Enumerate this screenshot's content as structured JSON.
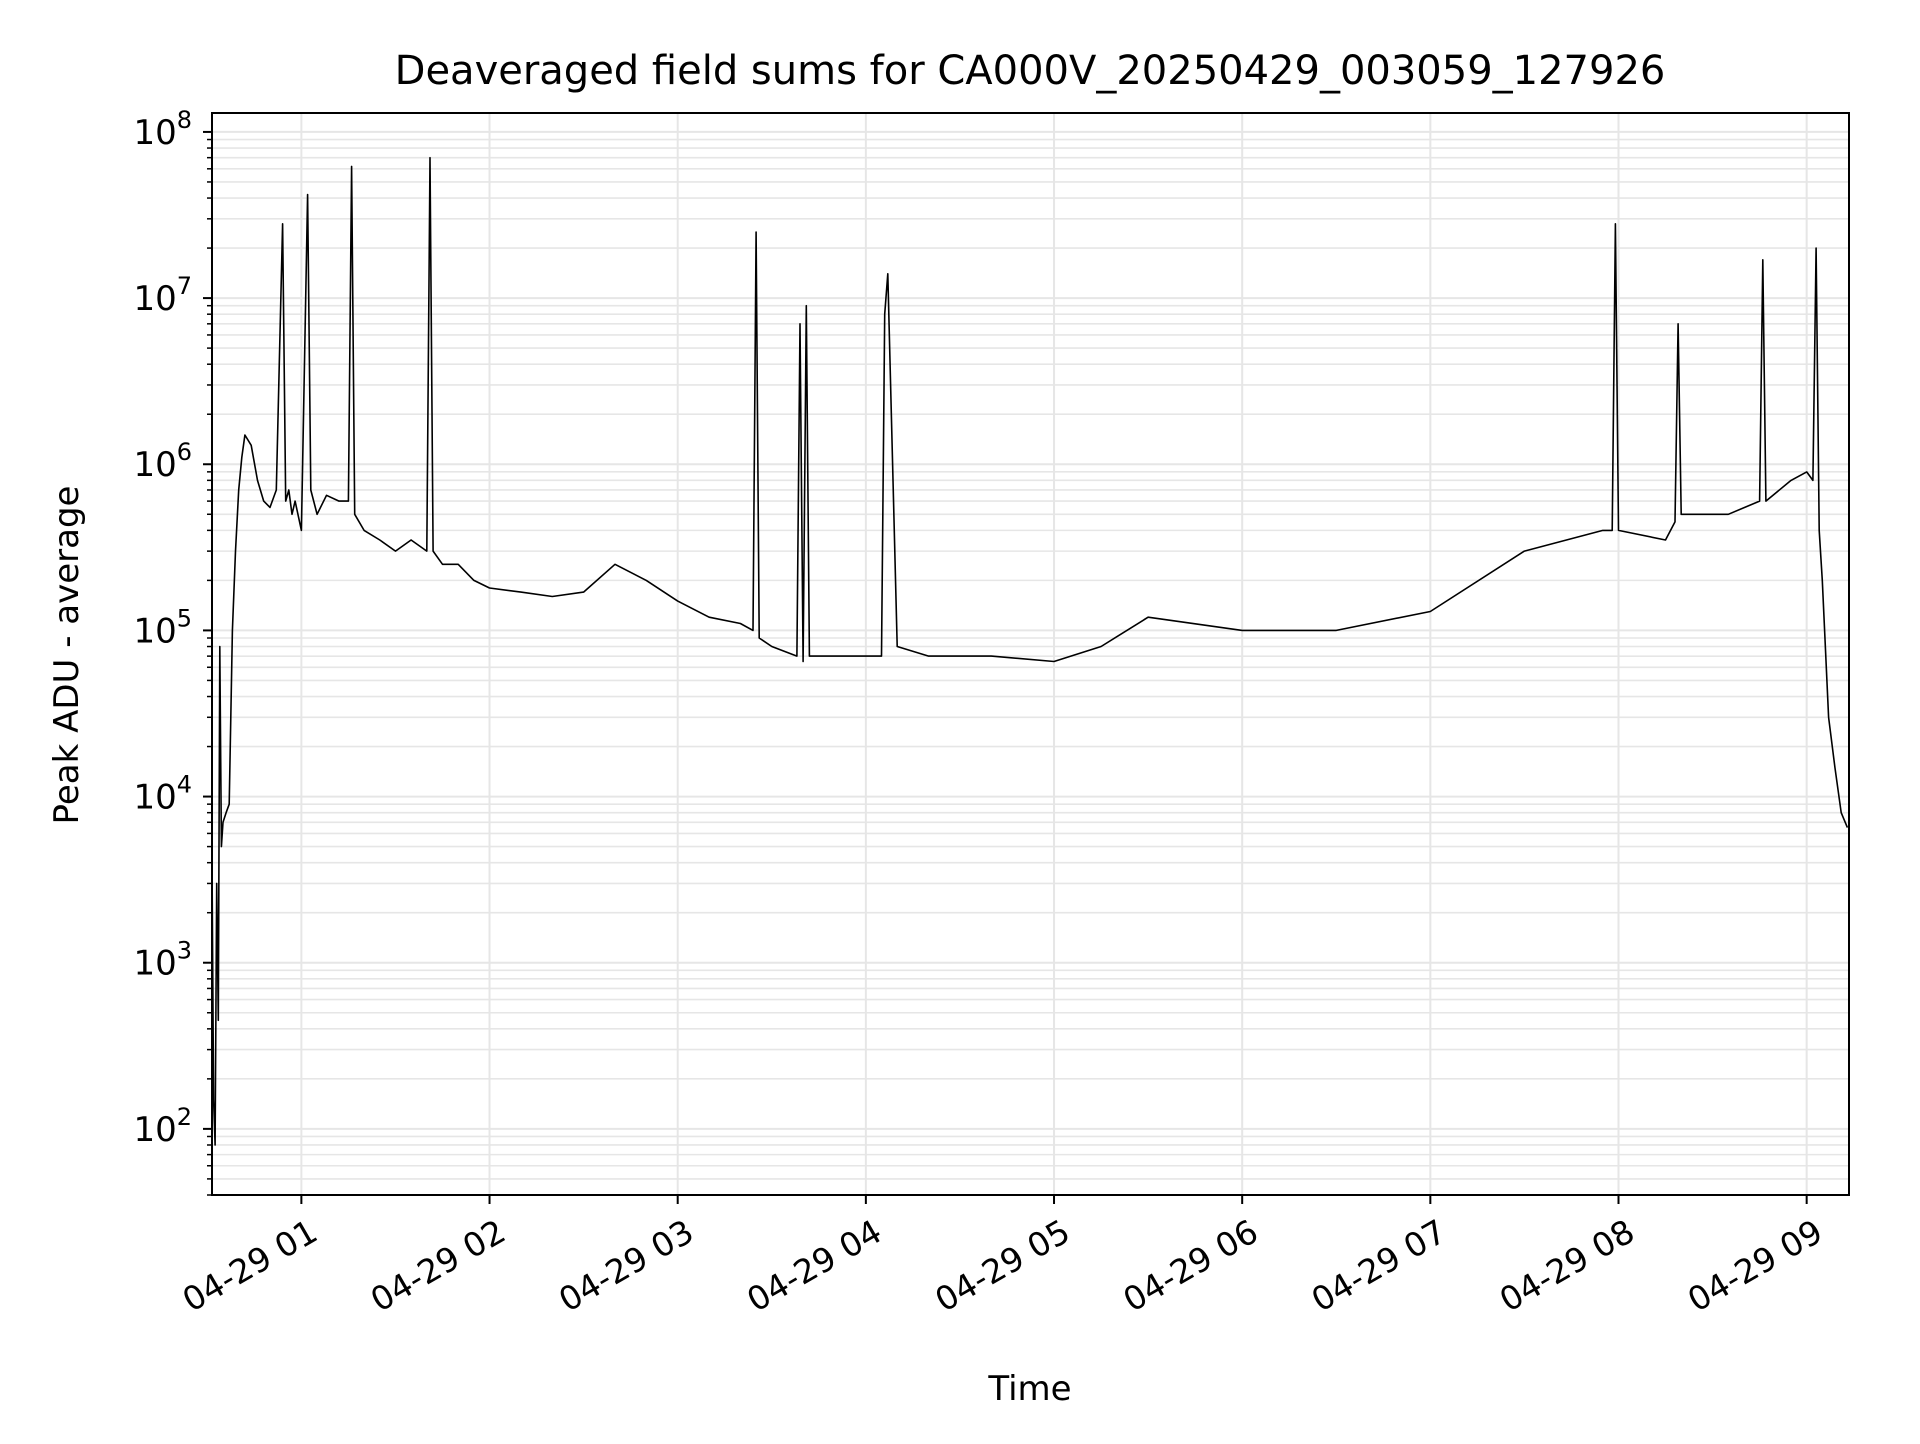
{
  "chart_data": {
    "type": "line",
    "title": "Deaveraged field sums for CA000V_20250429_003059_127926",
    "xlabel": "Time",
    "ylabel": "Peak ADU - average",
    "y_scale": "log",
    "ylim": [
      40,
      130000000
    ],
    "xlim": [
      "2025-04-29 00:31:30",
      "2025-04-29 09:13:30"
    ],
    "grid": true,
    "x_ticks": [
      {
        "value": "2025-04-29 01:00",
        "label": "04-29 01"
      },
      {
        "value": "2025-04-29 02:00",
        "label": "04-29 02"
      },
      {
        "value": "2025-04-29 03:00",
        "label": "04-29 03"
      },
      {
        "value": "2025-04-29 04:00",
        "label": "04-29 04"
      },
      {
        "value": "2025-04-29 05:00",
        "label": "04-29 05"
      },
      {
        "value": "2025-04-29 06:00",
        "label": "04-29 06"
      },
      {
        "value": "2025-04-29 07:00",
        "label": "04-29 07"
      },
      {
        "value": "2025-04-29 08:00",
        "label": "04-29 08"
      },
      {
        "value": "2025-04-29 09:00",
        "label": "04-29 09"
      }
    ],
    "y_ticks": [
      {
        "value": 100,
        "base": "10",
        "exp": "2"
      },
      {
        "value": 1000,
        "base": "10",
        "exp": "3"
      },
      {
        "value": 10000,
        "base": "10",
        "exp": "4"
      },
      {
        "value": 100000,
        "base": "10",
        "exp": "5"
      },
      {
        "value": 1000000,
        "base": "10",
        "exp": "6"
      },
      {
        "value": 10000000,
        "base": "10",
        "exp": "7"
      },
      {
        "value": 100000000,
        "base": "10",
        "exp": "8"
      }
    ],
    "series": [
      {
        "color": "#000000",
        "x": [
          "2025-04-29 00:31:30",
          "2025-04-29 00:32:00",
          "2025-04-29 00:32:30",
          "2025-04-29 00:33:00",
          "2025-04-29 00:33:30",
          "2025-04-29 00:34:00",
          "2025-04-29 00:34:30",
          "2025-04-29 00:35:00",
          "2025-04-29 00:36:00",
          "2025-04-29 00:37:00",
          "2025-04-29 00:38:00",
          "2025-04-29 00:39:00",
          "2025-04-29 00:40:00",
          "2025-04-29 00:41:00",
          "2025-04-29 00:42:00",
          "2025-04-29 00:44:00",
          "2025-04-29 00:46:00",
          "2025-04-29 00:48:00",
          "2025-04-29 00:50:00",
          "2025-04-29 00:52:00",
          "2025-04-29 00:54:00",
          "2025-04-29 00:55:00",
          "2025-04-29 00:56:00",
          "2025-04-29 00:57:00",
          "2025-04-29 00:58:00",
          "2025-04-29 01:00:00",
          "2025-04-29 01:02:00",
          "2025-04-29 01:03:00",
          "2025-04-29 01:05:00",
          "2025-04-29 01:08:00",
          "2025-04-29 01:12:00",
          "2025-04-29 01:15:00",
          "2025-04-29 01:16:00",
          "2025-04-29 01:17:00",
          "2025-04-29 01:20:00",
          "2025-04-29 01:25:00",
          "2025-04-29 01:30:00",
          "2025-04-29 01:35:00",
          "2025-04-29 01:40:00",
          "2025-04-29 01:41:00",
          "2025-04-29 01:42:00",
          "2025-04-29 01:45:00",
          "2025-04-29 01:50:00",
          "2025-04-29 01:55:00",
          "2025-04-29 02:00:00",
          "2025-04-29 02:10:00",
          "2025-04-29 02:20:00",
          "2025-04-29 02:30:00",
          "2025-04-29 02:40:00",
          "2025-04-29 02:50:00",
          "2025-04-29 03:00:00",
          "2025-04-29 03:10:00",
          "2025-04-29 03:20:00",
          "2025-04-29 03:24:00",
          "2025-04-29 03:25:00",
          "2025-04-29 03:26:00",
          "2025-04-29 03:30:00",
          "2025-04-29 03:38:00",
          "2025-04-29 03:39:00",
          "2025-04-29 03:40:00",
          "2025-04-29 03:41:00",
          "2025-04-29 03:42:00",
          "2025-04-29 03:50:00",
          "2025-04-29 04:00:00",
          "2025-04-29 04:05:00",
          "2025-04-29 04:06:00",
          "2025-04-29 04:07:00",
          "2025-04-29 04:10:00",
          "2025-04-29 04:20:00",
          "2025-04-29 04:40:00",
          "2025-04-29 05:00:00",
          "2025-04-29 05:15:00",
          "2025-04-29 05:30:00",
          "2025-04-29 06:00:00",
          "2025-04-29 06:30:00",
          "2025-04-29 07:00:00",
          "2025-04-29 07:30:00",
          "2025-04-29 07:55:00",
          "2025-04-29 07:58:00",
          "2025-04-29 07:59:00",
          "2025-04-29 08:00:00",
          "2025-04-29 08:15:00",
          "2025-04-29 08:18:00",
          "2025-04-29 08:19:00",
          "2025-04-29 08:20:00",
          "2025-04-29 08:35:00",
          "2025-04-29 08:45:00",
          "2025-04-29 08:46:00",
          "2025-04-29 08:47:00",
          "2025-04-29 08:55:00",
          "2025-04-29 09:00:00",
          "2025-04-29 09:02:00",
          "2025-04-29 09:03:00",
          "2025-04-29 09:04:00",
          "2025-04-29 09:05:00",
          "2025-04-29 09:07:00",
          "2025-04-29 09:09:00",
          "2025-04-29 09:11:00",
          "2025-04-29 09:13:00"
        ],
        "y": [
          4000,
          150,
          80,
          3000,
          450,
          80000,
          5000,
          7000,
          8000,
          9000,
          100000,
          300000,
          700000,
          1100000,
          1500000,
          1300000,
          800000,
          600000,
          550000,
          700000,
          28000000,
          600000,
          700000,
          500000,
          600000,
          400000,
          42000000,
          700000,
          500000,
          650000,
          600000,
          600000,
          62000000,
          500000,
          400000,
          350000,
          300000,
          350000,
          300000,
          70000000,
          300000,
          250000,
          250000,
          200000,
          180000,
          170000,
          160000,
          170000,
          250000,
          200000,
          150000,
          120000,
          110000,
          100000,
          25000000,
          90000,
          80000,
          70000,
          7000000,
          65000,
          9000000,
          70000,
          70000,
          70000,
          70000,
          8000000,
          14000000,
          80000,
          70000,
          70000,
          65000,
          80000,
          120000,
          100000,
          100000,
          130000,
          300000,
          400000,
          400000,
          28000000,
          400000,
          350000,
          450000,
          7000000,
          500000,
          500000,
          600000,
          17000000,
          600000,
          800000,
          900000,
          800000,
          20000000,
          400000,
          200000,
          30000,
          15000,
          8000,
          6500
        ]
      }
    ]
  }
}
